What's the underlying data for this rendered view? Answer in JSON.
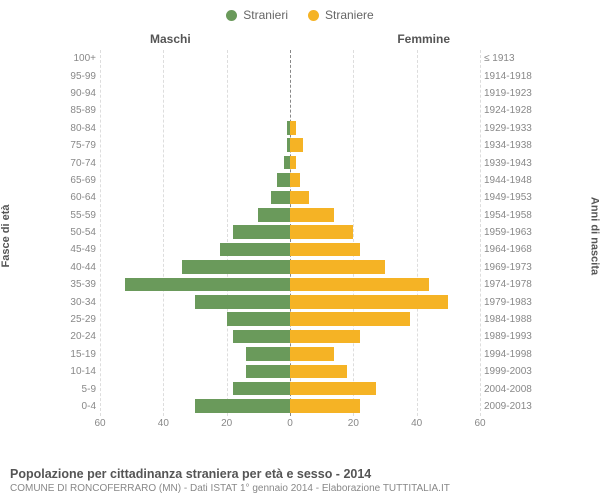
{
  "legend": {
    "male": {
      "label": "Stranieri",
      "color": "#6a9a5b"
    },
    "female": {
      "label": "Straniere",
      "color": "#f5b325"
    }
  },
  "headers": {
    "left": "Maschi",
    "right": "Femmine"
  },
  "y_left_title": "Fasce di età",
  "y_right_title": "Anni di nascita",
  "chart": {
    "type": "bar-pyramid",
    "xlim": 60,
    "xticks_left": [
      60,
      40,
      20,
      0
    ],
    "xticks_right": [
      0,
      20,
      40,
      60
    ],
    "grid_color": "#dddddd",
    "center_color": "#888888",
    "background_color": "#ffffff",
    "bar_color_male": "#6a9a5b",
    "bar_color_female": "#f5b325",
    "label_fontsize": 10,
    "rows": [
      {
        "age": "100+",
        "birth": "≤ 1913",
        "m": 0,
        "f": 0
      },
      {
        "age": "95-99",
        "birth": "1914-1918",
        "m": 0,
        "f": 0
      },
      {
        "age": "90-94",
        "birth": "1919-1923",
        "m": 0,
        "f": 0
      },
      {
        "age": "85-89",
        "birth": "1924-1928",
        "m": 0,
        "f": 0
      },
      {
        "age": "80-84",
        "birth": "1929-1933",
        "m": 1,
        "f": 2
      },
      {
        "age": "75-79",
        "birth": "1934-1938",
        "m": 1,
        "f": 4
      },
      {
        "age": "70-74",
        "birth": "1939-1943",
        "m": 2,
        "f": 2
      },
      {
        "age": "65-69",
        "birth": "1944-1948",
        "m": 4,
        "f": 3
      },
      {
        "age": "60-64",
        "birth": "1949-1953",
        "m": 6,
        "f": 6
      },
      {
        "age": "55-59",
        "birth": "1954-1958",
        "m": 10,
        "f": 14
      },
      {
        "age": "50-54",
        "birth": "1959-1963",
        "m": 18,
        "f": 20
      },
      {
        "age": "45-49",
        "birth": "1964-1968",
        "m": 22,
        "f": 22
      },
      {
        "age": "40-44",
        "birth": "1969-1973",
        "m": 34,
        "f": 30
      },
      {
        "age": "35-39",
        "birth": "1974-1978",
        "m": 52,
        "f": 44
      },
      {
        "age": "30-34",
        "birth": "1979-1983",
        "m": 30,
        "f": 50
      },
      {
        "age": "25-29",
        "birth": "1984-1988",
        "m": 20,
        "f": 38
      },
      {
        "age": "20-24",
        "birth": "1989-1993",
        "m": 18,
        "f": 22
      },
      {
        "age": "15-19",
        "birth": "1994-1998",
        "m": 14,
        "f": 14
      },
      {
        "age": "10-14",
        "birth": "1999-2003",
        "m": 14,
        "f": 18
      },
      {
        "age": "5-9",
        "birth": "2004-2008",
        "m": 18,
        "f": 27
      },
      {
        "age": "0-4",
        "birth": "2009-2013",
        "m": 30,
        "f": 22
      }
    ]
  },
  "footer": {
    "title": "Popolazione per cittadinanza straniera per età e sesso - 2014",
    "subtitle": "COMUNE DI RONCOFERRARO (MN) - Dati ISTAT 1° gennaio 2014 - Elaborazione TUTTITALIA.IT"
  }
}
